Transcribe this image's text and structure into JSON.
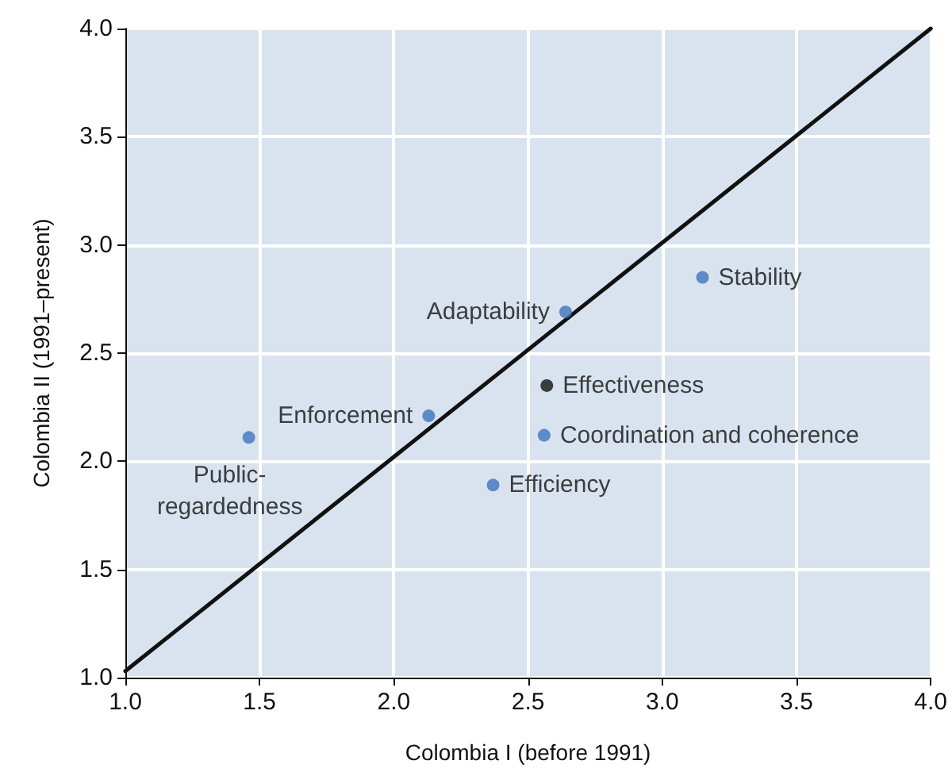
{
  "chart_data": {
    "type": "scatter",
    "xlabel": "Colombia I (before 1991)",
    "ylabel": "Colombia II (1991–present)",
    "xlim": [
      1.0,
      4.0
    ],
    "ylim": [
      1.0,
      4.0
    ],
    "xticks": [
      {
        "value": 1.0,
        "label": "1.0"
      },
      {
        "value": 1.5,
        "label": "1.5"
      },
      {
        "value": 2.0,
        "label": "2.0"
      },
      {
        "value": 2.5,
        "label": "2.5"
      },
      {
        "value": 3.0,
        "label": "3.0"
      },
      {
        "value": 3.5,
        "label": "3.5"
      },
      {
        "value": 4.0,
        "label": "4.0"
      }
    ],
    "yticks": [
      {
        "value": 1.0,
        "label": "1.0"
      },
      {
        "value": 1.5,
        "label": "1.5"
      },
      {
        "value": 2.0,
        "label": "2.0"
      },
      {
        "value": 2.5,
        "label": "2.5"
      },
      {
        "value": 3.0,
        "label": "3.0"
      },
      {
        "value": 3.5,
        "label": "3.5"
      },
      {
        "value": 4.0,
        "label": "4.0"
      }
    ],
    "grid": true,
    "marker": "circle",
    "series": [
      {
        "x": [
          1.46,
          2.13,
          2.64,
          3.15,
          2.57,
          2.56,
          2.37
        ],
        "values": [
          2.11,
          2.21,
          2.69,
          2.85,
          2.35,
          2.12,
          1.89
        ],
        "colors": [
          "#3f73bd",
          "#3f73bd",
          "#3f73bd",
          "#3f73bd",
          "#111111",
          "#3f73bd",
          "#3f73bd"
        ],
        "value_labels": [
          "Public-regardedness",
          "Enforcement",
          "Adaptability",
          "Stability",
          "Effectiveness",
          "Coordination and coherence",
          "Efficiency"
        ]
      },
      {
        "type": "line",
        "x": [
          1.0,
          4.0
        ],
        "values": [
          1.03,
          4.0
        ],
        "color": "#111111",
        "line_style": "solid",
        "marker": "none"
      }
    ]
  }
}
